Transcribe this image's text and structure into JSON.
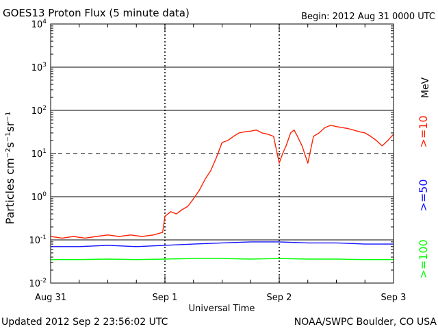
{
  "header": {
    "title": "GOES13 Proton Flux (5 minute data)",
    "begin": "Begin: 2012 Aug 31 0000 UTC"
  },
  "footer": {
    "updated": "Updated 2012 Sep  2 23:56:02 UTC",
    "credit": "NOAA/SWPC Boulder, CO USA"
  },
  "chart_data": {
    "type": "line",
    "title": "GOES13 Proton Flux (5 minute data)",
    "xlabel": "Universal Time",
    "ylabel": "Particles cm⁻²s⁻¹sr⁻¹",
    "unit_label": "MeV",
    "y_scale": "log",
    "ylim": [
      0.01,
      10000
    ],
    "xlim": [
      0,
      3
    ],
    "x_unit": "days since 2012 Aug 31 0000 UTC",
    "x_ticks": [
      {
        "x": 0,
        "label": "Aug 31"
      },
      {
        "x": 1,
        "label": "Sep 1"
      },
      {
        "x": 2,
        "label": "Sep 2"
      },
      {
        "x": 3,
        "label": "Sep 3"
      }
    ],
    "y_ticks": [
      {
        "value": 0.01,
        "base": "10",
        "exp": "-2"
      },
      {
        "value": 0.1,
        "base": "10",
        "exp": "-1"
      },
      {
        "value": 1,
        "base": "10",
        "exp": "0"
      },
      {
        "value": 10,
        "base": "10",
        "exp": "1"
      },
      {
        "value": 100,
        "base": "10",
        "exp": "2"
      },
      {
        "value": 1000,
        "base": "10",
        "exp": "3"
      },
      {
        "value": 10000,
        "base": "10",
        "exp": "4"
      }
    ],
    "threshold_line": 10,
    "colors": {
      "p10": "#ff2000",
      "p50": "#1010ff",
      "p100": "#00ff00"
    },
    "series": [
      {
        "name": ">=10",
        "color": "#ff2000",
        "x": [
          0,
          0.1,
          0.2,
          0.3,
          0.4,
          0.5,
          0.6,
          0.7,
          0.8,
          0.9,
          0.98,
          1.0,
          1.05,
          1.1,
          1.15,
          1.2,
          1.25,
          1.3,
          1.35,
          1.4,
          1.45,
          1.5,
          1.55,
          1.6,
          1.65,
          1.7,
          1.75,
          1.8,
          1.85,
          1.9,
          1.95,
          2.0,
          2.03,
          2.06,
          2.1,
          2.13,
          2.16,
          2.2,
          2.25,
          2.3,
          2.35,
          2.4,
          2.45,
          2.5,
          2.55,
          2.6,
          2.65,
          2.7,
          2.75,
          2.8,
          2.85,
          2.9,
          2.95,
          3.0
        ],
        "values": [
          0.12,
          0.11,
          0.12,
          0.11,
          0.12,
          0.13,
          0.12,
          0.13,
          0.12,
          0.13,
          0.15,
          0.35,
          0.45,
          0.4,
          0.5,
          0.6,
          0.9,
          1.4,
          2.5,
          4,
          8,
          18,
          20,
          25,
          30,
          32,
          33,
          35,
          30,
          28,
          25,
          6,
          10,
          15,
          30,
          35,
          25,
          15,
          6,
          25,
          30,
          40,
          45,
          42,
          40,
          38,
          35,
          32,
          30,
          25,
          20,
          15,
          20,
          28
        ]
      },
      {
        "name": ">=50",
        "color": "#1010ff",
        "x": [
          0,
          0.25,
          0.5,
          0.75,
          1.0,
          1.25,
          1.5,
          1.75,
          2.0,
          2.25,
          2.5,
          2.75,
          3.0
        ],
        "values": [
          0.07,
          0.07,
          0.075,
          0.07,
          0.075,
          0.08,
          0.085,
          0.09,
          0.09,
          0.085,
          0.085,
          0.08,
          0.08
        ]
      },
      {
        "name": ">=100",
        "color": "#00ff00",
        "x": [
          0,
          0.25,
          0.5,
          0.75,
          1.0,
          1.25,
          1.5,
          1.75,
          2.0,
          2.25,
          2.5,
          2.75,
          3.0
        ],
        "values": [
          0.035,
          0.035,
          0.036,
          0.035,
          0.036,
          0.037,
          0.037,
          0.036,
          0.037,
          0.036,
          0.036,
          0.035,
          0.035
        ]
      }
    ],
    "legend": [
      {
        "label": ">=10",
        "color": "#ff2000"
      },
      {
        "label": ">=50",
        "color": "#1010ff"
      },
      {
        "label": ">=100",
        "color": "#00ff00"
      }
    ]
  }
}
